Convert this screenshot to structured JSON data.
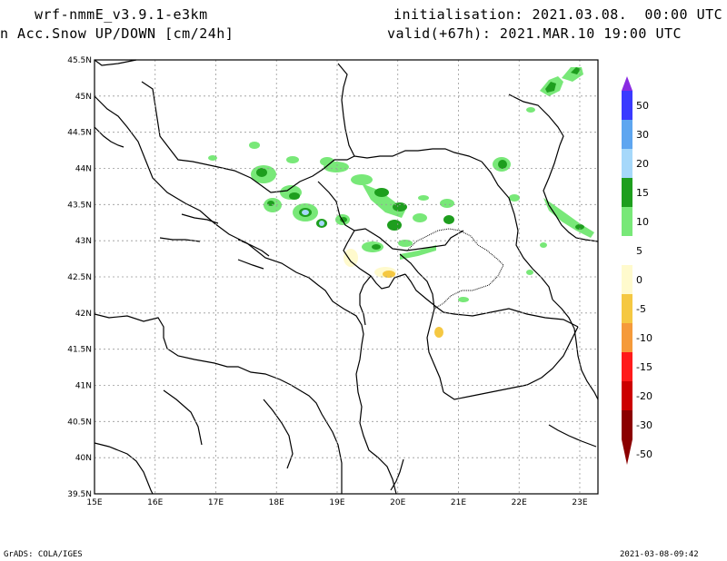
{
  "header": {
    "model": "wrf-nmmE_v3.9.1-e3km",
    "field": "n Acc.Snow UP/DOWN [cm/24h]",
    "init": "initialisation: 2021.03.08.  00:00 UTC",
    "valid": "valid(+67h): 2021.MAR.10 19:00 UTC"
  },
  "footer": {
    "left": "GrADS: COLA/IGES",
    "right": "2021-03-08-09:42"
  },
  "map": {
    "lon_labels": [
      "15E",
      "16E",
      "17E",
      "18E",
      "19E",
      "20E",
      "21E",
      "22E",
      "23E"
    ],
    "lat_labels": [
      "45.5N",
      "45N",
      "44.5N",
      "44N",
      "43.5N",
      "43N",
      "42.5N",
      "42N",
      "41.5N",
      "41N",
      "40.5N",
      "40N",
      "39.5N"
    ],
    "lon_range": [
      15,
      23.3
    ],
    "lat_range": [
      39.5,
      45.5
    ]
  },
  "colorbar": {
    "labels": [
      "50",
      "30",
      "20",
      "15",
      "10",
      "5",
      "0",
      "-5",
      "-10",
      "-15",
      "-20",
      "-30",
      "-50"
    ],
    "colors": [
      "#8a2be2",
      "#3a3aff",
      "#5ea6f0",
      "#a6d8fa",
      "#1e9e1e",
      "#78e878",
      "#ffffff",
      "#fffacd",
      "#f5c842",
      "#f59a3a",
      "#ff1a1a",
      "#cc0000",
      "#8b0000"
    ]
  }
}
